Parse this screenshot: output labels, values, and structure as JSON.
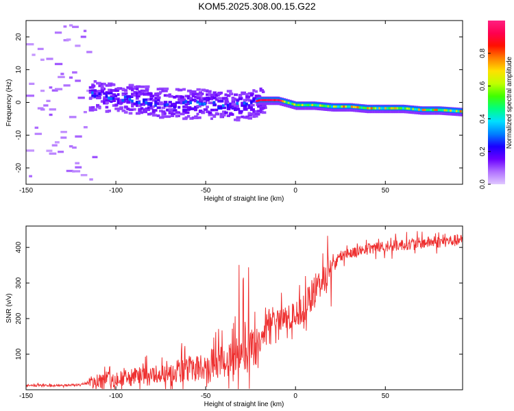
{
  "chart_data": [
    {
      "type": "heatmap",
      "title": "KOM5.2025.308.00.15.G22",
      "xlabel": "Height of straight line (km)",
      "ylabel": "Frequency (Hz)",
      "xlim": [
        -150,
        93
      ],
      "ylim": [
        -25,
        25
      ],
      "xticks": [
        -150,
        -100,
        -50,
        0,
        50
      ],
      "yticks": [
        -20,
        -10,
        0,
        10,
        20
      ],
      "colorbar": {
        "label": "Normalized spectral amplitude",
        "range": [
          0,
          1
        ],
        "ticks": [
          0.0,
          0.2,
          0.4,
          0.6,
          0.8
        ],
        "colormap": [
          "#e0c8ff",
          "#b070ff",
          "#6a00ff",
          "#1a00ff",
          "#0080ff",
          "#00e0ff",
          "#00ff80",
          "#40ff00",
          "#c0ff00",
          "#ffe000",
          "#ff8000",
          "#ff1000",
          "#ff0050",
          "#ff2080"
        ]
      },
      "ridge_frequency": {
        "x": [
          -115,
          -100,
          -90,
          -80,
          -70,
          -60,
          -50,
          -40,
          -30,
          -20,
          -10,
          0,
          10,
          20,
          30,
          40,
          50,
          60,
          70,
          80,
          93
        ],
        "y": [
          2.0,
          1.5,
          1.0,
          0.0,
          -0.5,
          -0.5,
          -0.5,
          -1.0,
          -1.0,
          0.5,
          0.5,
          -1.0,
          -1.0,
          -1.5,
          -1.5,
          -2.0,
          -2.0,
          -2.0,
          -2.5,
          -2.5,
          -3.0
        ]
      }
    },
    {
      "type": "line",
      "xlabel": "Height of straight line (km)",
      "ylabel": "SNR (v/v)",
      "xlim": [
        -150,
        93
      ],
      "ylim": [
        0,
        460
      ],
      "xticks": [
        -150,
        -100,
        -50,
        0,
        50
      ],
      "yticks": [
        100,
        200,
        300,
        400
      ],
      "line_color": "#ee3030",
      "series": [
        {
          "name": "SNR",
          "x": [
            -150,
            -140,
            -130,
            -120,
            -115,
            -110,
            -105,
            -100,
            -95,
            -90,
            -85,
            -80,
            -75,
            -70,
            -65,
            -60,
            -55,
            -50,
            -45,
            -40,
            -35,
            -30,
            -25,
            -20,
            -15,
            -10,
            -5,
            0,
            5,
            10,
            15,
            20,
            25,
            30,
            35,
            40,
            45,
            50,
            55,
            60,
            65,
            70,
            75,
            80,
            85,
            93
          ],
          "values": [
            12,
            12,
            12,
            14,
            20,
            25,
            28,
            30,
            32,
            35,
            38,
            40,
            48,
            52,
            55,
            60,
            62,
            65,
            75,
            80,
            90,
            100,
            110,
            120,
            200,
            200,
            200,
            210,
            230,
            270,
            310,
            350,
            375,
            385,
            390,
            395,
            400,
            400,
            405,
            408,
            410,
            412,
            415,
            415,
            418,
            420
          ]
        }
      ]
    }
  ]
}
